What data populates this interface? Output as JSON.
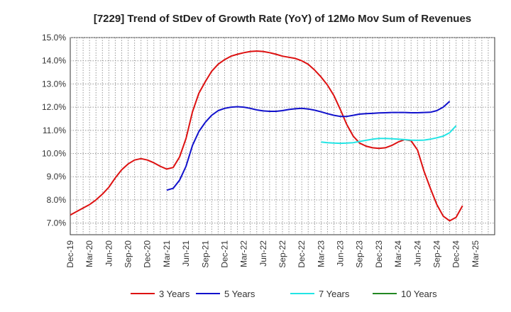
{
  "chart_data": {
    "type": "line",
    "title": "[7229]  Trend of StDev of Growth Rate (YoY) of 12Mo Mov Sum of Revenues",
    "xlabel": "",
    "ylabel": "",
    "ylim": [
      6.5,
      15.0
    ],
    "y_ticks": [
      7.0,
      8.0,
      9.0,
      10.0,
      11.0,
      12.0,
      13.0,
      14.0,
      15.0
    ],
    "y_tick_labels": [
      "7.0%",
      "8.0%",
      "9.0%",
      "10.0%",
      "11.0%",
      "12.0%",
      "13.0%",
      "14.0%",
      "15.0%"
    ],
    "x_start": "Dec-19",
    "x_months": 66,
    "x_tick_labels": [
      "Dec-19",
      "Mar-20",
      "Jun-20",
      "Sep-20",
      "Dec-20",
      "Mar-21",
      "Jun-21",
      "Sep-21",
      "Dec-21",
      "Mar-22",
      "Jun-22",
      "Sep-22",
      "Dec-22",
      "Mar-23",
      "Jun-23",
      "Sep-23",
      "Dec-23",
      "Mar-24",
      "Jun-24",
      "Sep-24",
      "Dec-24",
      "Mar-25"
    ],
    "grid": true,
    "legend_position": "bottom",
    "series": [
      {
        "name": "3 Years",
        "color": "#dd1111",
        "start_index": 0,
        "values": [
          7.35,
          7.5,
          7.65,
          7.8,
          8.0,
          8.25,
          8.55,
          8.95,
          9.3,
          9.55,
          9.72,
          9.78,
          9.72,
          9.6,
          9.45,
          9.33,
          9.4,
          9.85,
          10.65,
          11.8,
          12.6,
          13.1,
          13.55,
          13.85,
          14.05,
          14.2,
          14.28,
          14.35,
          14.4,
          14.42,
          14.4,
          14.35,
          14.28,
          14.2,
          14.15,
          14.1,
          14.0,
          13.85,
          13.6,
          13.3,
          12.95,
          12.5,
          11.9,
          11.25,
          10.75,
          10.45,
          10.32,
          10.25,
          10.22,
          10.25,
          10.35,
          10.5,
          10.6,
          10.55,
          10.15,
          9.25,
          8.5,
          7.8,
          7.3,
          7.1,
          7.25,
          7.75
        ]
      },
      {
        "name": "5 Years",
        "color": "#1111cc",
        "start_index": 15,
        "values": [
          8.42,
          8.5,
          8.85,
          9.45,
          10.35,
          10.95,
          11.35,
          11.65,
          11.85,
          11.95,
          12.0,
          12.02,
          12.0,
          11.95,
          11.88,
          11.84,
          11.82,
          11.82,
          11.85,
          11.9,
          11.93,
          11.95,
          11.92,
          11.87,
          11.8,
          11.72,
          11.65,
          11.6,
          11.6,
          11.65,
          11.7,
          11.72,
          11.73,
          11.75,
          11.76,
          11.77,
          11.77,
          11.77,
          11.76,
          11.76,
          11.77,
          11.78,
          11.85,
          12.0,
          12.25
        ]
      },
      {
        "name": "7 Years",
        "color": "#22e5e5",
        "start_index": 39,
        "values": [
          10.5,
          10.47,
          10.45,
          10.44,
          10.45,
          10.47,
          10.52,
          10.57,
          10.62,
          10.65,
          10.65,
          10.64,
          10.62,
          10.6,
          10.58,
          10.57,
          10.58,
          10.62,
          10.68,
          10.75,
          10.9,
          11.2
        ]
      },
      {
        "name": "10 Years",
        "color": "#228822",
        "start_index": 0,
        "values": []
      }
    ]
  }
}
